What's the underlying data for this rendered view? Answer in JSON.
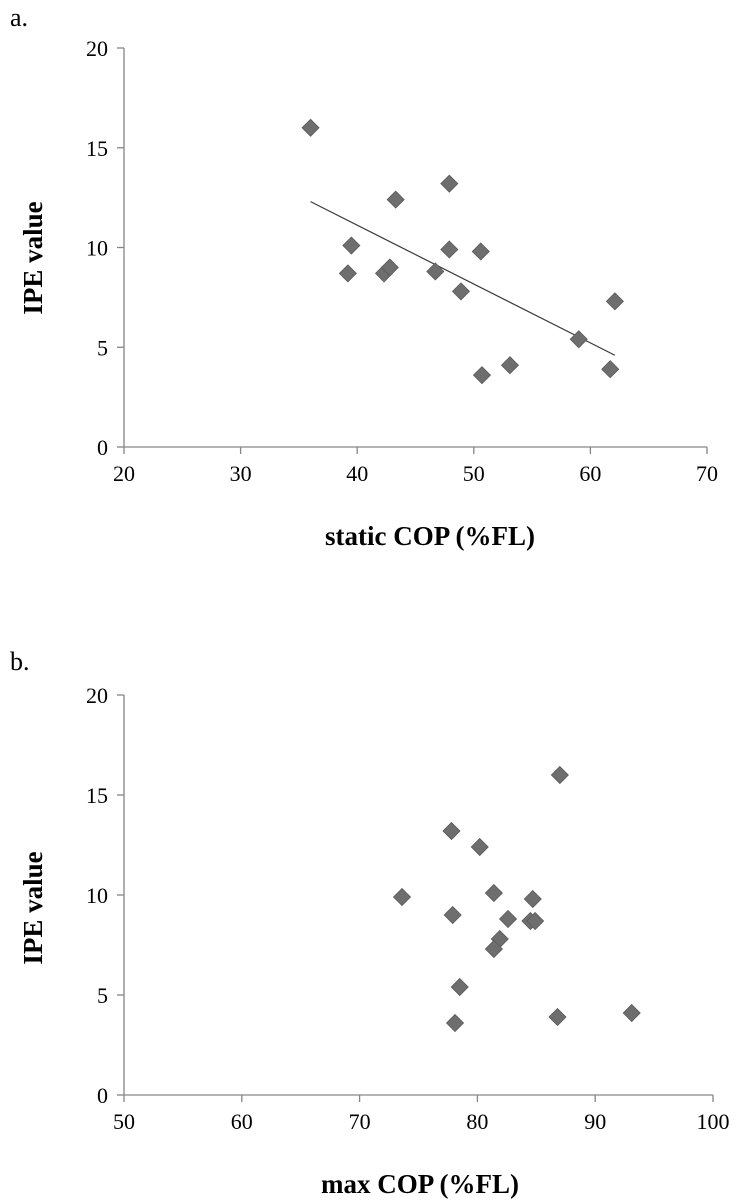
{
  "chart_data": [
    {
      "type": "scatter",
      "panel_label": "a.",
      "xlabel": "static COP (%FL)",
      "ylabel": "IPE value",
      "xlim": [
        20,
        70
      ],
      "ylim": [
        0,
        20
      ],
      "xticks": [
        20,
        30,
        40,
        50,
        60,
        70
      ],
      "yticks": [
        0,
        5,
        10,
        15,
        20
      ],
      "points": [
        {
          "x": 36.0,
          "y": 16.0
        },
        {
          "x": 39.2,
          "y": 8.7
        },
        {
          "x": 39.5,
          "y": 10.1
        },
        {
          "x": 42.3,
          "y": 8.7
        },
        {
          "x": 42.8,
          "y": 9.0
        },
        {
          "x": 43.3,
          "y": 12.4
        },
        {
          "x": 46.7,
          "y": 8.8
        },
        {
          "x": 47.9,
          "y": 13.2
        },
        {
          "x": 47.9,
          "y": 9.9
        },
        {
          "x": 48.9,
          "y": 7.8
        },
        {
          "x": 50.6,
          "y": 9.8
        },
        {
          "x": 50.7,
          "y": 3.6
        },
        {
          "x": 53.1,
          "y": 4.1
        },
        {
          "x": 59.0,
          "y": 5.4
        },
        {
          "x": 61.7,
          "y": 3.9
        },
        {
          "x": 62.1,
          "y": 7.3
        }
      ],
      "trendline": {
        "x": [
          36.0,
          62.1
        ],
        "y": [
          12.3,
          4.6
        ]
      },
      "grid": false,
      "legend": "none"
    },
    {
      "type": "scatter",
      "panel_label": "b.",
      "xlabel": "max COP (%FL)",
      "ylabel": "IPE value",
      "xlim": [
        50,
        100
      ],
      "ylim": [
        0,
        20
      ],
      "xticks": [
        50,
        60,
        70,
        80,
        90,
        100
      ],
      "yticks": [
        0,
        5,
        10,
        15,
        20
      ],
      "points": [
        {
          "x": 87.0,
          "y": 16.0
        },
        {
          "x": 77.8,
          "y": 13.2
        },
        {
          "x": 80.2,
          "y": 12.4
        },
        {
          "x": 73.6,
          "y": 9.9
        },
        {
          "x": 81.4,
          "y": 10.1
        },
        {
          "x": 84.7,
          "y": 9.8
        },
        {
          "x": 77.9,
          "y": 9.0
        },
        {
          "x": 82.6,
          "y": 8.8
        },
        {
          "x": 84.5,
          "y": 8.7
        },
        {
          "x": 84.9,
          "y": 8.7
        },
        {
          "x": 81.9,
          "y": 7.8
        },
        {
          "x": 81.4,
          "y": 7.3
        },
        {
          "x": 78.5,
          "y": 5.4
        },
        {
          "x": 78.1,
          "y": 3.6
        },
        {
          "x": 86.8,
          "y": 3.9
        },
        {
          "x": 93.1,
          "y": 4.1
        }
      ],
      "grid": false,
      "legend": "none"
    }
  ]
}
